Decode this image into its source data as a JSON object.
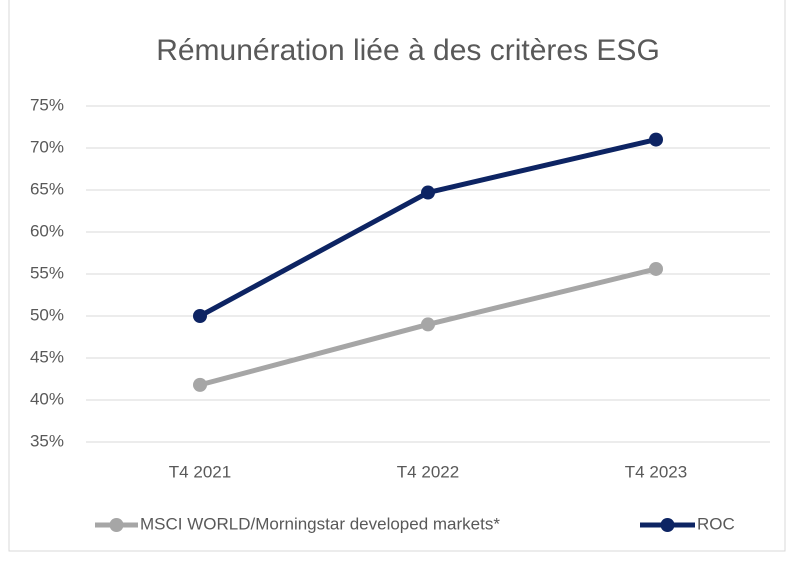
{
  "chart_data": {
    "type": "line",
    "title": "Rémunération liée à des critères ESG",
    "categories": [
      "T4 2021",
      "T4 2022",
      "T4 2023"
    ],
    "series": [
      {
        "name": "MSCI WORLD/Morningstar developed markets*",
        "color": "#a6a6a6",
        "values": [
          41.8,
          49,
          55.6
        ]
      },
      {
        "name": "ROC",
        "color": "#0d2463",
        "values": [
          50,
          64.7,
          71
        ]
      }
    ],
    "ylim": [
      35,
      75
    ],
    "yticks": [
      {
        "value": 35,
        "label": "35%"
      },
      {
        "value": 40,
        "label": "40%"
      },
      {
        "value": 45,
        "label": "45%"
      },
      {
        "value": 50,
        "label": "50%"
      },
      {
        "value": 55,
        "label": "55%"
      },
      {
        "value": 60,
        "label": "60%"
      },
      {
        "value": 65,
        "label": "65%"
      },
      {
        "value": 70,
        "label": "70%"
      },
      {
        "value": 75,
        "label": "75%"
      }
    ],
    "grid": true,
    "legend": "bottom"
  }
}
